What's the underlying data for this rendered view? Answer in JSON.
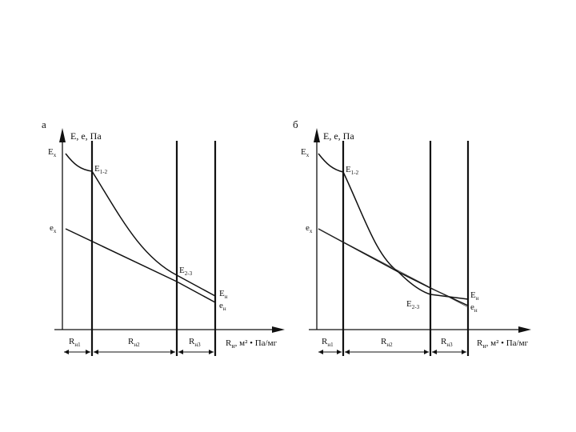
{
  "panel_a": {
    "letter": "а",
    "y_axis": "E, e, Па",
    "x_axis": "R",
    "x_axis_sub": "н",
    "x_axis_tail": ", м² • Па/мг",
    "Ex_left": "E",
    "Ex_left_sub": "х",
    "E12": "E",
    "E12_sub": "1-2",
    "E23": "E",
    "E23_sub": "2-3",
    "ex_left": "e",
    "ex_left_sub": "х",
    "Ex_right": "E",
    "Ex_right_sub": "н",
    "ex_right": "e",
    "ex_right_sub": "н",
    "R1": "R",
    "R1_sub": "н1",
    "R2": "R",
    "R2_sub": "н2",
    "R3": "R",
    "R3_sub": "н3"
  },
  "panel_b": {
    "letter": "б",
    "y_axis": "E, e, Па",
    "x_axis": "R",
    "x_axis_sub": "н",
    "x_axis_tail": ", м² • Па/мг",
    "Ex_left": "E",
    "Ex_left_sub": "х",
    "E12": "E",
    "E12_sub": "1-2",
    "E23": "E",
    "E23_sub": "2-3",
    "ex_left": "e",
    "ex_left_sub": "х",
    "Ex_right": "E",
    "Ex_right_sub": "н",
    "ex_right": "e",
    "ex_right_sub": "н",
    "R1": "R",
    "R1_sub": "н1",
    "R2": "R",
    "R2_sub": "н2",
    "R3": "R",
    "R3_sub": "н3"
  }
}
